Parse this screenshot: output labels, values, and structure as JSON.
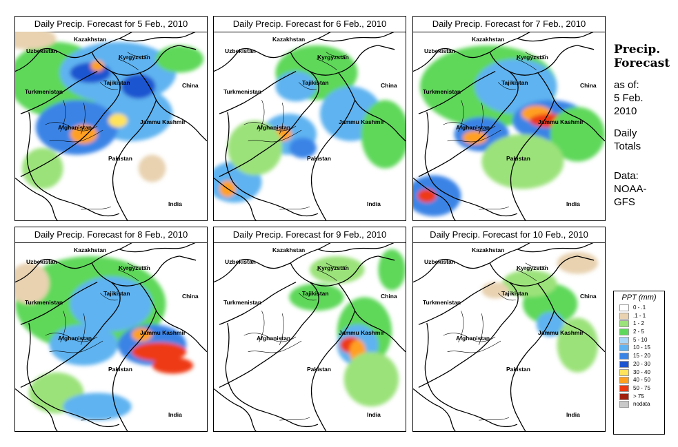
{
  "title_prefix": "Daily Precip. Forecast for",
  "panels": [
    {
      "date": "5 Feb., 2010",
      "title": "Daily Precip. Forecast for  5 Feb., 2010"
    },
    {
      "date": "6 Feb., 2010",
      "title": "Daily Precip. Forecast for  6 Feb., 2010"
    },
    {
      "date": "7 Feb., 2010",
      "title": "Daily Precip. Forecast for  7 Feb., 2010"
    },
    {
      "date": "8 Feb., 2010",
      "title": "Daily Precip. Forecast for  8 Feb., 2010"
    },
    {
      "date": "9 Feb., 2010",
      "title": "Daily Precip. Forecast for  9 Feb., 2010"
    },
    {
      "date": "10 Feb., 2010",
      "title": "Daily Precip. Forecast for  10 Feb., 2010"
    }
  ],
  "map_labels": {
    "kazakhstan": "Kazakhstan",
    "uzbekistan": "Uzbekistan",
    "kyrgyzstan": "Kyrgyzstan",
    "tajikistan": "Tajikistan",
    "turkmenistan": "Turkmenistan",
    "china": "China",
    "afghanistan": "Afghanistan",
    "jammu_kashmir": "Jammu Kashmir",
    "pakistan": "Pakistan",
    "india": "India"
  },
  "sidebar": {
    "heading_line1": "Precip.",
    "heading_line2": "Forecast",
    "asof_line1": "as of:",
    "asof_line2": "5 Feb.",
    "asof_line3": "2010",
    "totals_line1": "Daily",
    "totals_line2": "Totals",
    "source_line1": "Data:",
    "source_line2": "NOAA-",
    "source_line3": "GFS"
  },
  "legend": {
    "title": "PPT (mm)",
    "items": [
      {
        "label": "0 - .1",
        "color": "#ffffff"
      },
      {
        "label": ".1 - 1",
        "color": "#e8d2b0"
      },
      {
        "label": "1 - 2",
        "color": "#9be27a"
      },
      {
        "label": "2 - 5",
        "color": "#5ed85a"
      },
      {
        "label": "5 - 10",
        "color": "#a8d6f6"
      },
      {
        "label": "10 - 15",
        "color": "#5fb3f0"
      },
      {
        "label": "15 - 20",
        "color": "#3a84e6"
      },
      {
        "label": "20 - 30",
        "color": "#1b54d0"
      },
      {
        "label": "30 - 40",
        "color": "#ffe35a"
      },
      {
        "label": "40 - 50",
        "color": "#ffa020"
      },
      {
        "label": "50 - 75",
        "color": "#ee3a12"
      },
      {
        "label": "> 75",
        "color": "#a02010"
      },
      {
        "label": "nodata",
        "color": "#c8c8c8"
      }
    ]
  }
}
